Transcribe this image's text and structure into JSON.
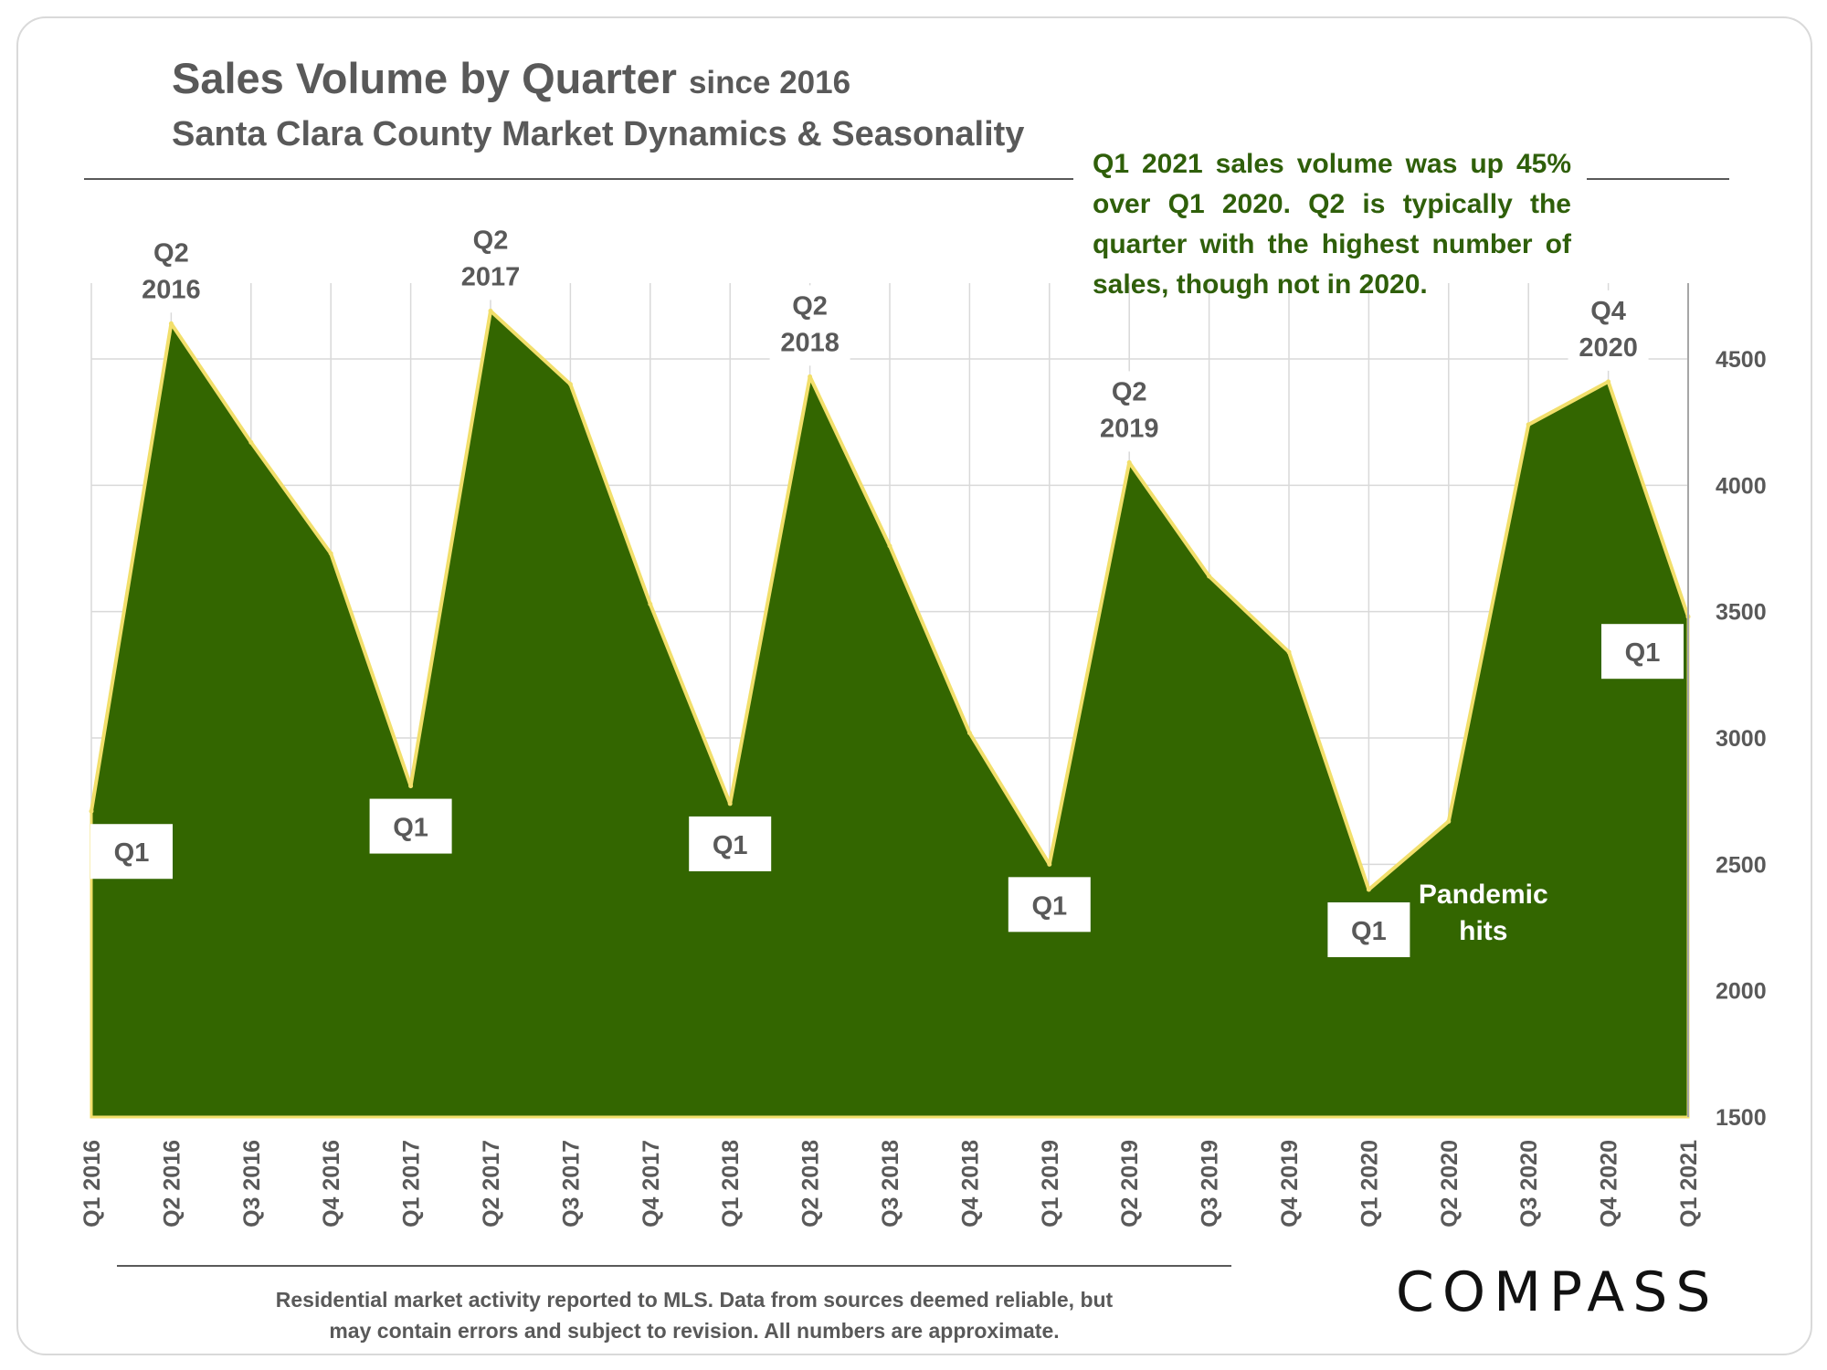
{
  "header": {
    "title": "Sales Volume by Quarter",
    "title_suffix": "since 2016",
    "subtitle": "Santa Clara County Market Dynamics & Seasonality"
  },
  "note": "Q1 2021 sales volume was up 45% over Q1 2020. Q2 is typically the quarter with the highest number of sales, though not in 2020.",
  "footer": {
    "line1": "Residential market activity reported to MLS. Data from sources deemed reliable, but",
    "line2": "may contain errors and subject to revision. All numbers are approximate."
  },
  "logo": "COMPASS",
  "colors": {
    "fill": "#336600",
    "outline": "#f2df6b",
    "note_text": "#2f5f0a",
    "label_text": "#595959"
  },
  "chart_data": {
    "type": "area",
    "categories": [
      "Q1 2016",
      "Q2 2016",
      "Q3 2016",
      "Q4 2016",
      "Q1 2017",
      "Q2 2017",
      "Q3 2017",
      "Q4 2017",
      "Q1 2018",
      "Q2 2018",
      "Q3 2018",
      "Q4 2018",
      "Q1 2019",
      "Q2 2019",
      "Q3 2019",
      "Q4 2019",
      "Q1 2020",
      "Q2 2020",
      "Q3 2020",
      "Q4 2020",
      "Q1 2021"
    ],
    "values": [
      2710,
      4640,
      4170,
      3730,
      2810,
      4690,
      4400,
      3530,
      2740,
      4430,
      3760,
      3020,
      2500,
      4090,
      3640,
      3340,
      2400,
      2670,
      4240,
      4410,
      3480
    ],
    "ylim": [
      1500,
      4800
    ],
    "yticks": [
      1500,
      2000,
      2500,
      3000,
      3500,
      4000,
      4500
    ],
    "y_axis_side": "right",
    "grid": true,
    "peak_labels": [
      {
        "index": 1,
        "line1": "Q2",
        "line2": "2016"
      },
      {
        "index": 5,
        "line1": "Q2",
        "line2": "2017"
      },
      {
        "index": 9,
        "line1": "Q2",
        "line2": "2018"
      },
      {
        "index": 13,
        "line1": "Q2",
        "line2": "2019"
      },
      {
        "index": 19,
        "line1": "Q4",
        "line2": "2020"
      }
    ],
    "q1_labels": [
      {
        "index": 0,
        "text": "Q1"
      },
      {
        "index": 4,
        "text": "Q1"
      },
      {
        "index": 8,
        "text": "Q1"
      },
      {
        "index": 12,
        "text": "Q1"
      },
      {
        "index": 16,
        "text": "Q1"
      },
      {
        "index": 20,
        "text": "Q1"
      }
    ],
    "annotation": {
      "index": 17,
      "line1": "Pandemic",
      "line2": "hits"
    }
  }
}
